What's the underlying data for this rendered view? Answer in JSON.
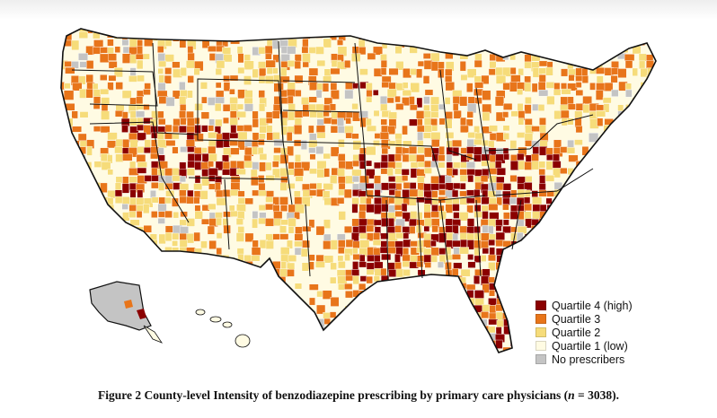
{
  "figure": {
    "caption": {
      "label": "Figure 2",
      "text": "County-level Intensity of benzodiazepine prescribing by primary care physicians",
      "n_var": "n",
      "n_value": "3038"
    }
  },
  "legend": {
    "items": [
      {
        "label": "Quartile 4 (high)",
        "color": "#8b0000"
      },
      {
        "label": "Quartile 3",
        "color": "#e8751a"
      },
      {
        "label": "Quartile 2",
        "color": "#f6dc7a"
      },
      {
        "label": "Quartile 1 (low)",
        "color": "#fffbe3"
      },
      {
        "label": "No prescribers",
        "color": "#c4c4c4"
      }
    ]
  }
}
